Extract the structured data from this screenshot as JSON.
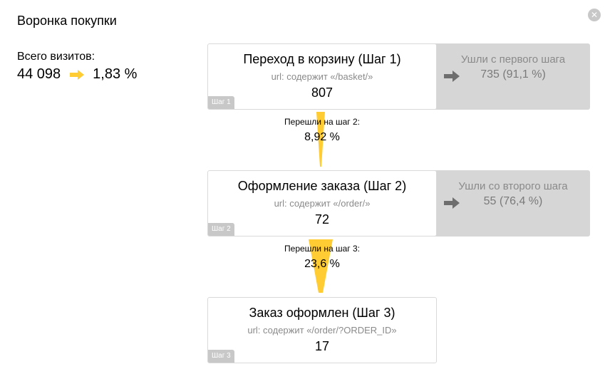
{
  "header": {
    "title": "Воронка покупки",
    "close_icon": "close-icon"
  },
  "visits": {
    "label": "Всего визитов:",
    "total": "44 098",
    "conversion": "1,83 %",
    "arrow_color": "#ffcc33"
  },
  "steps": [
    {
      "title": "Переход в корзину (Шаг 1)",
      "url": "url: содержит «/basket/»",
      "count": "807",
      "badge": "Шаг 1"
    },
    {
      "title": "Оформление заказа (Шаг 2)",
      "url": "url: содержит «/order/»",
      "count": "72",
      "badge": "Шаг 2"
    },
    {
      "title": "Заказ оформлен (Шаг 3)",
      "url": "url: содержит «/order/?ORDER_ID»",
      "count": "17",
      "badge": "Шаг 3"
    }
  ],
  "drops": [
    {
      "label": "Ушли с первого шага",
      "value": "735 (91,1 %)"
    },
    {
      "label": "Ушли со второго шага",
      "value": "55 (76,4 %)"
    }
  ],
  "conversions": [
    {
      "label": "Перешли на шаг 2:",
      "value": "8,92 %"
    },
    {
      "label": "Перешли на шаг 3:",
      "value": "23,6 %"
    }
  ],
  "colors": {
    "accent": "#ffcc33",
    "drop_panel": "#d6d6d6",
    "badge": "#c8c8c8"
  }
}
